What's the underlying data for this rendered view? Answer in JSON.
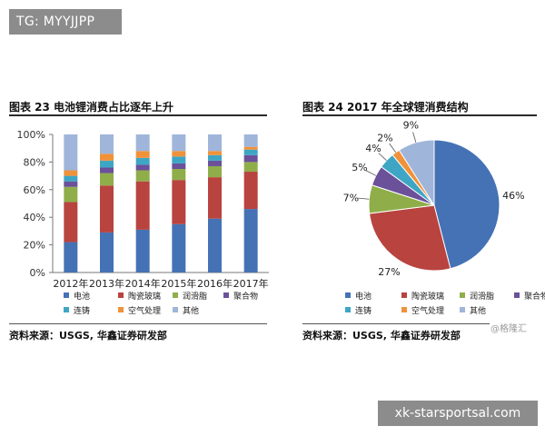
{
  "watermarks": {
    "top": "TG: MYYJJPP",
    "bottom": "xk-starsportsal.com",
    "corner": "@格隆汇"
  },
  "colors": {
    "电池": "#4472b4",
    "陶瓷玻璃": "#b8433f",
    "润滑脂": "#8fae4a",
    "聚合物": "#6b509a",
    "连铸": "#3ea6c4",
    "空气处理": "#f0923a",
    "其他": "#9fb5da"
  },
  "chart_data": [
    {
      "type": "bar",
      "stacked": true,
      "title": "图表 23  电池锂消费占比逐年上升",
      "categories": [
        "2012年",
        "2013年",
        "2014年",
        "2015年",
        "2016年",
        "2017年"
      ],
      "ylim": [
        0,
        100
      ],
      "y_ticks": [
        "0%",
        "20%",
        "40%",
        "60%",
        "80%",
        "100%"
      ],
      "series": [
        {
          "name": "电池",
          "values": [
            22,
            29,
            31,
            35,
            39,
            46
          ]
        },
        {
          "name": "陶瓷玻璃",
          "values": [
            29,
            34,
            35,
            32,
            30,
            27
          ]
        },
        {
          "name": "润滑脂",
          "values": [
            11,
            9,
            8,
            8,
            8,
            7
          ]
        },
        {
          "name": "聚合物",
          "values": [
            4,
            4,
            4,
            4,
            4,
            5
          ]
        },
        {
          "name": "连铸",
          "values": [
            4,
            5,
            5,
            5,
            4,
            4
          ]
        },
        {
          "name": "空气处理",
          "values": [
            4,
            5,
            5,
            4,
            3,
            2
          ]
        },
        {
          "name": "其他",
          "values": [
            26,
            14,
            12,
            12,
            12,
            9
          ]
        }
      ],
      "legend": [
        "电池",
        "陶瓷玻璃",
        "润滑脂",
        "聚合物",
        "连铸",
        "空气处理",
        "其他"
      ],
      "legend_position": "bottom",
      "source": "资料来源：USGS, 华鑫证券研发部"
    },
    {
      "type": "pie",
      "title": "图表 24  2017 年全球锂消费结构",
      "categories": [
        "电池",
        "陶瓷玻璃",
        "润滑脂",
        "聚合物",
        "连铸",
        "空气处理",
        "其他"
      ],
      "values": [
        46,
        27,
        7,
        5,
        4,
        2,
        9
      ],
      "labels": [
        "46%",
        "27%",
        "7%",
        "5%",
        "4%",
        "2%",
        "9%"
      ],
      "legend": [
        "电池",
        "陶瓷玻璃",
        "润滑脂",
        "聚合物",
        "连铸",
        "空气处理",
        "其他"
      ],
      "legend_position": "bottom",
      "source": "资料来源：USGS, 华鑫证券研发部"
    }
  ]
}
